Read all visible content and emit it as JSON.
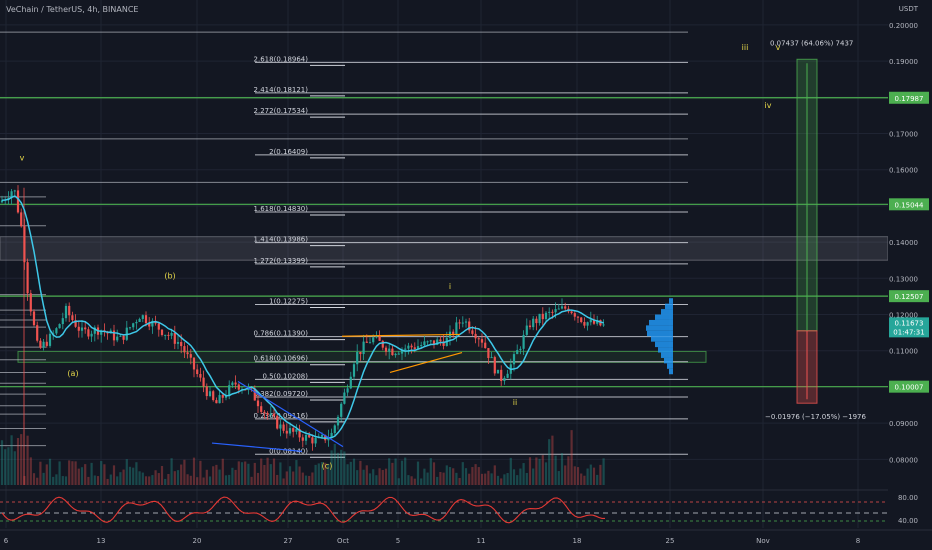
{
  "header": {
    "symbol": "VeChain / TetherUS, 4h, BINANCE"
  },
  "chart_data": {
    "type": "candlestick",
    "price_axis": {
      "currency": "USDT",
      "ticks": [
        "0.20000",
        "0.19000",
        "0.18000",
        "0.17000",
        "0.16000",
        "0.15000",
        "0.14000",
        "0.13000",
        "0.12000",
        "0.11000",
        "0.10000",
        "0.09000",
        "0.08000"
      ],
      "range": [
        0.0765,
        0.2019
      ]
    },
    "time_axis": {
      "ticks": [
        "6",
        "13",
        "20",
        "27",
        "Oct",
        "5",
        "11",
        "18",
        "25",
        "Nov",
        "8"
      ]
    },
    "current_price": {
      "value": "0.11673",
      "countdown": "01:47:31"
    },
    "fib_levels": [
      {
        "label": "2.618(0.18964)",
        "value": 0.18964
      },
      {
        "label": "2.414(0.18121)",
        "value": 0.18121
      },
      {
        "label": "2.272(0.17534)",
        "value": 0.17534
      },
      {
        "label": "2(0.16409)",
        "value": 0.16409
      },
      {
        "label": "1.618(0.14830)",
        "value": 0.1483
      },
      {
        "label": "1.414(0.13986)",
        "value": 0.13986
      },
      {
        "label": "1.272(0.13399)",
        "value": 0.13399
      },
      {
        "label": "1(0.12275)",
        "value": 0.12275
      },
      {
        "label": "0.786(0.11390)",
        "value": 0.1139
      },
      {
        "label": "0.618(0.10696)",
        "value": 0.10696
      },
      {
        "label": "0.5(0.10208)",
        "value": 0.10208
      },
      {
        "label": "0.382(0.09720)",
        "value": 0.0972
      },
      {
        "label": "0.236(0.09116)",
        "value": 0.09116
      },
      {
        "label": "0(0.08140)",
        "value": 0.0814
      }
    ],
    "horizontal_levels": [
      {
        "label": "0.17987",
        "value": 0.17987
      },
      {
        "label": "0.15044",
        "value": 0.15044
      },
      {
        "label": "0.12507",
        "value": 0.12507
      },
      {
        "label": "0.10007",
        "value": 0.10007
      }
    ],
    "wave_labels": [
      {
        "label": "v",
        "price": 0.1625
      },
      {
        "label": "(b)",
        "price": 0.13
      },
      {
        "label": "(a)",
        "price": 0.103
      },
      {
        "label": "(c)",
        "price": 0.0775
      },
      {
        "label": "i",
        "price": 0.127
      },
      {
        "label": "ii",
        "price": 0.095
      },
      {
        "label": "iii",
        "price": 0.193
      },
      {
        "label": "iv",
        "price": 0.177
      },
      {
        "label": "v",
        "price": 0.193
      }
    ],
    "measure": {
      "target_text": "0.07437 (64.06%) 7437",
      "stop_text": "−0.01976 (−17.05%) −1976",
      "entry": 0.1155,
      "target": 0.1905,
      "stop": 0.0955
    },
    "oscillator": {
      "ticks": [
        "80.00",
        "40.00"
      ]
    }
  },
  "colors": {
    "background": "#131722",
    "up": "#26a69a",
    "down": "#ef5350",
    "ma": "#3ec8e8",
    "level": "#4caf50",
    "fib": "#d1d4dc",
    "wave": "#e6d84a",
    "trend_blue": "#2962ff",
    "trend_orange": "#ff9800"
  }
}
